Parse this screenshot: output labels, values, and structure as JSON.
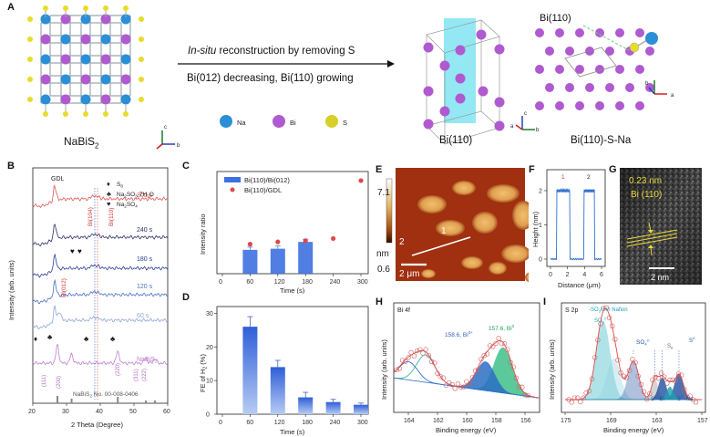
{
  "panel_labels": {
    "A": "A",
    "B": "B",
    "C": "C",
    "D": "D",
    "E": "E",
    "F": "F",
    "G": "G",
    "H": "H",
    "I": "I"
  },
  "panelA": {
    "left_compound": "NaBiS",
    "left_compound_sub": "2",
    "arrow_text_line1_italic": "In-situ",
    "arrow_text_line1_rest": " reconstruction by removing S",
    "arrow_text_line2": "Bi(012) decreasing, Bi(110) growing",
    "legend": [
      {
        "name": "Na",
        "color": "#2a8fd6"
      },
      {
        "name": "Bi",
        "color": "#b05ad0"
      },
      {
        "name": "S",
        "color": "#d8cf2a"
      }
    ],
    "middle_label": "Bi(110)",
    "right_label": "Bi(110)-S-Na",
    "right_top_label": "Bi(110)",
    "axes_letters": {
      "a": "a",
      "b": "b",
      "c": "c"
    }
  },
  "panelB": {
    "ylabel": "Intensity (arb. units)",
    "xlabel": "2 Theta (Degree)",
    "xticks": [
      "20",
      "30",
      "40",
      "50",
      "60"
    ],
    "gdl": "GDL",
    "legend": [
      {
        "symbol": "♦",
        "text": "S",
        "sub": "8"
      },
      {
        "symbol": "♣",
        "text": "Na",
        "sub": "2",
        "rest": "SO",
        "sub2": "3",
        "rest2": "·7H",
        "sub3": "2",
        "rest3": "O"
      },
      {
        "symbol": "♥",
        "text": "Na",
        "sub": "2",
        "rest": "SO",
        "sub2": "4",
        "rest2": "",
        "sub3": "",
        "rest3": ""
      }
    ],
    "peak_labels": {
      "bi104": "Bi(104)",
      "bi110": "Bi(110)",
      "bi012": "Bi(012)",
      "p200": "(200)",
      "p111": "(111)",
      "p220": "(220)",
      "p311": "(311)",
      "p222": "(222)"
    },
    "curves": [
      {
        "label": "300 s",
        "color": "#e05555"
      },
      {
        "label": "240 s",
        "color": "#2a2f6b"
      },
      {
        "label": "180 s",
        "color": "#2b3d9a"
      },
      {
        "label": "120 s",
        "color": "#4b6fc4"
      },
      {
        "label": "60 s",
        "color": "#8fa6d8"
      },
      {
        "label": "NaBiS",
        "sub": "2",
        "color": "#c080d0"
      }
    ],
    "ref_text": "NaBiS",
    "ref_sub": "2",
    "ref_rest": " No. 00-008-0406"
  },
  "panelC": {
    "ylabel": "Intensity ratio",
    "xlabel": "Time (s)",
    "xticks": [
      "0",
      "60",
      "120",
      "180",
      "240",
      "300"
    ],
    "legend1": "Bi(110)/Bi(012)",
    "legend2": "Bi(110)/GDL"
  },
  "panelD": {
    "ylabel": "FE of H",
    "ylabel_sub": "2",
    "ylabel_rest": " (%)",
    "xlabel": "Time (s)",
    "xticks": [
      "0",
      "60",
      "120",
      "180",
      "240",
      "300"
    ],
    "yticks": [
      "0",
      "10",
      "20",
      "30"
    ]
  },
  "panelE": {
    "scale_max": "7.1",
    "scale_unit": "nm",
    "scale_min": "0.6",
    "scalebar": "2 μm",
    "marker1": "1",
    "marker2": "2"
  },
  "panelF": {
    "ylabel": "Height (nm)",
    "xlabel": "Distance (μm)",
    "xticks": [
      "0",
      "2",
      "4",
      "6"
    ],
    "yticks": [
      "0",
      "1",
      "2"
    ],
    "marker1": "1",
    "marker2": "2"
  },
  "panelG": {
    "line1": "0.23 nm",
    "line2": "Bi (110)",
    "scalebar": "2 nm"
  },
  "panelH": {
    "title": "Bi 4f",
    "ylabel": "Intensity (arb. units)",
    "xlabel": "Binding energy (eV)",
    "xticks": [
      "164",
      "162",
      "160",
      "158",
      "156"
    ],
    "peak1": "158.6, Bi",
    "peak1_sup": "3+",
    "peak2": "157.6, Bi",
    "peak2_sup": "0"
  },
  "panelI": {
    "title": "S 2p",
    "ylabel": "Intensity (arb. units)",
    "xlabel": "Binding energy (eV)",
    "xticks": [
      "175",
      "169",
      "163",
      "157"
    ],
    "lab_so3h": "-SO",
    "lab_so3h_sub": "3",
    "lab_so3h_rest": "H in Nafion",
    "lab_so32": "SO",
    "lab_so32_sub": "3",
    "lab_so32_sup": "2-",
    "lab_so42": "SO",
    "lab_so42_sub": "4",
    "lab_so42_sup": "2-",
    "lab_s8": "S",
    "lab_s8_sub": "8",
    "lab_s2": "S",
    "lab_s2_sup": "2-",
    "lab_sbi": "S",
    "lab_sbi_sup": "2-",
    "lab_sbi_rest": "-Bi",
    "lab_sna": "S",
    "lab_sna_sup": "2-",
    "lab_sna_rest": "-Na"
  },
  "chart_data": [
    {
      "type": "bar",
      "panel": "C",
      "xlabel": "Time (s)",
      "ylabel": "Intensity ratio",
      "x": [
        0,
        60,
        120,
        180,
        240,
        300
      ],
      "series": [
        {
          "name": "Bi(110)/Bi(012)",
          "kind": "bar",
          "x": [
            60,
            120,
            180
          ],
          "values": [
            0.21,
            0.22,
            0.28
          ]
        },
        {
          "name": "Bi(110)/GDL",
          "kind": "scatter",
          "x": [
            60,
            120,
            180,
            240,
            300
          ],
          "values": [
            0.26,
            0.28,
            0.29,
            0.31,
            0.82
          ]
        }
      ],
      "ylim": [
        0,
        0.9
      ]
    },
    {
      "type": "bar",
      "panel": "D",
      "xlabel": "Time (s)",
      "ylabel": "FE of H2 (%)",
      "categories": [
        "60",
        "120",
        "180",
        "240",
        "300"
      ],
      "x": [
        60,
        120,
        180,
        240,
        300
      ],
      "values": [
        26,
        14,
        5,
        3.6,
        2.8
      ],
      "errors": [
        3,
        2,
        1.5,
        0.8,
        0.5
      ],
      "ylim": [
        0,
        32
      ]
    }
  ]
}
